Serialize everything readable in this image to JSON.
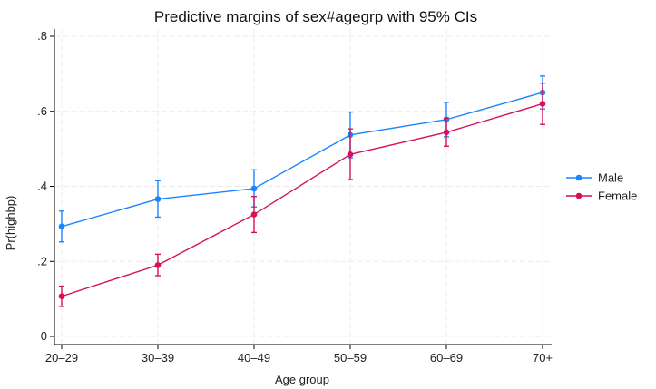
{
  "chart_data": {
    "type": "line",
    "title": "Predictive margins of sex#agegrp with 95% CIs",
    "xlabel": "Age group",
    "ylabel": "Pr(highbp)",
    "categories": [
      "20–29",
      "30–39",
      "40–49",
      "50–59",
      "60–69",
      "70+"
    ],
    "yticks": [
      "0",
      ".2",
      ".4",
      ".6",
      ".8"
    ],
    "ytick_values": [
      0,
      0.2,
      0.4,
      0.6,
      0.8
    ],
    "ylim": [
      0,
      0.8
    ],
    "grid": true,
    "legend_position": "right",
    "series": [
      {
        "name": "Male",
        "color": "#1a85ff",
        "values": [
          0.293,
          0.366,
          0.394,
          0.537,
          0.578,
          0.65
        ],
        "ci_low": [
          0.252,
          0.318,
          0.345,
          0.476,
          0.532,
          0.606
        ],
        "ci_high": [
          0.334,
          0.415,
          0.444,
          0.598,
          0.624,
          0.694
        ]
      },
      {
        "name": "Female",
        "color": "#d41159",
        "values": [
          0.107,
          0.19,
          0.325,
          0.485,
          0.544,
          0.62
        ],
        "ci_low": [
          0.08,
          0.162,
          0.277,
          0.418,
          0.507,
          0.565
        ],
        "ci_high": [
          0.134,
          0.219,
          0.373,
          0.553,
          0.582,
          0.675
        ]
      }
    ]
  }
}
